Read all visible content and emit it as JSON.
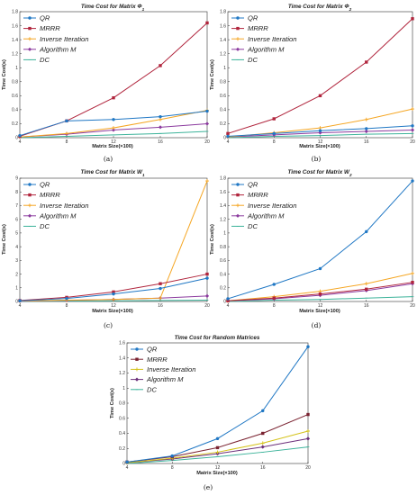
{
  "colors": {
    "QR": "#1f77c4",
    "MRRR": "#b0243c",
    "Inverse Iteration": "#f5a623",
    "Algorithm M": "#8b3a9e",
    "DC": "#3cb39a",
    "Inverse Iteration (e)": "#d4c21a",
    "MRRR (e)": "#7a2230",
    "Algorithm M (e)": "#6b2f7a"
  },
  "chart_data": [
    {
      "type": "line",
      "title_main": "Time Cost for Matrix Φ",
      "title_sub": "1",
      "xlabel": "Matrix Size(×100)",
      "ylabel": "Time Cost(s)",
      "panel_label": "(a)",
      "x": [
        4,
        8,
        12,
        16,
        20
      ],
      "xlim": [
        4,
        20
      ],
      "ylim": [
        0,
        1.8
      ],
      "xticks": [
        "4",
        "8",
        "12",
        "16",
        "20"
      ],
      "yticks": [
        "0",
        "0.2",
        "0.4",
        "0.6",
        "0.8",
        "1",
        "1.2",
        "1.4",
        "1.6",
        "1.8"
      ],
      "legend": "top-left",
      "series": [
        {
          "name": "QR",
          "values": [
            0.03,
            0.24,
            0.26,
            0.3,
            0.38
          ]
        },
        {
          "name": "MRRR",
          "values": [
            0.02,
            0.24,
            0.57,
            1.03,
            1.64
          ]
        },
        {
          "name": "Inverse Iteration",
          "values": [
            0.01,
            0.06,
            0.14,
            0.26,
            0.39
          ]
        },
        {
          "name": "Algorithm M",
          "values": [
            0.01,
            0.05,
            0.11,
            0.15,
            0.2
          ]
        },
        {
          "name": "DC",
          "values": [
            0.0,
            0.02,
            0.04,
            0.06,
            0.09
          ]
        }
      ]
    },
    {
      "type": "line",
      "title_main": "Time Cost for Matrix Φ",
      "title_sub": "2",
      "xlabel": "Matrix Size(×100)",
      "ylabel": "Time Cost(s)",
      "panel_label": "(b)",
      "x": [
        4,
        8,
        12,
        16,
        20
      ],
      "xlim": [
        4,
        20
      ],
      "ylim": [
        0,
        1.8
      ],
      "xticks": [
        "4",
        "8",
        "12",
        "16",
        "20"
      ],
      "yticks": [
        "0",
        "0.2",
        "0.4",
        "0.6",
        "0.8",
        "1",
        "1.2",
        "1.4",
        "1.6",
        "1.8"
      ],
      "legend": "top-left",
      "series": [
        {
          "name": "QR",
          "values": [
            0.02,
            0.06,
            0.1,
            0.13,
            0.17
          ]
        },
        {
          "name": "MRRR",
          "values": [
            0.06,
            0.27,
            0.6,
            1.08,
            1.7
          ]
        },
        {
          "name": "Inverse Iteration",
          "values": [
            0.01,
            0.07,
            0.14,
            0.26,
            0.41
          ]
        },
        {
          "name": "Algorithm M",
          "values": [
            0.01,
            0.04,
            0.07,
            0.09,
            0.11
          ]
        },
        {
          "name": "DC",
          "values": [
            0.0,
            0.02,
            0.03,
            0.05,
            0.06
          ]
        }
      ]
    },
    {
      "type": "line",
      "title_main": "Time Cost for Matrix W",
      "title_sub": "1",
      "xlabel": "Matrix Size(×100)",
      "ylabel": "Time Cost(s)",
      "panel_label": "(c)",
      "x": [
        4,
        8,
        12,
        16,
        20
      ],
      "xlim": [
        4,
        20
      ],
      "ylim": [
        0,
        9
      ],
      "xticks": [
        "4",
        "8",
        "12",
        "16",
        "20"
      ],
      "yticks": [
        "0",
        "1",
        "2",
        "3",
        "4",
        "5",
        "6",
        "7",
        "8",
        "9"
      ],
      "legend": "top-left",
      "series": [
        {
          "name": "QR",
          "values": [
            0.05,
            0.22,
            0.55,
            0.95,
            1.7
          ]
        },
        {
          "name": "MRRR",
          "values": [
            0.07,
            0.3,
            0.7,
            1.3,
            2.0
          ]
        },
        {
          "name": "Inverse Iteration",
          "values": [
            0.03,
            0.1,
            0.15,
            0.25,
            8.8
          ]
        },
        {
          "name": "Algorithm M",
          "values": [
            0.02,
            0.08,
            0.15,
            0.25,
            0.4
          ]
        },
        {
          "name": "DC",
          "values": [
            0.01,
            0.03,
            0.05,
            0.07,
            0.1
          ]
        }
      ]
    },
    {
      "type": "line",
      "title_main": "Time Cost for Matrix W",
      "title_sub": "2",
      "xlabel": "Matrix Size(×100)",
      "ylabel": "Time Cost(s)",
      "panel_label": "(d)",
      "x": [
        4,
        8,
        12,
        16,
        20
      ],
      "xlim": [
        4,
        20
      ],
      "ylim": [
        0,
        1.8
      ],
      "xticks": [
        "4",
        "8",
        "12",
        "16",
        "20"
      ],
      "yticks": [
        "0",
        "0.2",
        "0.4",
        "0.6",
        "0.8",
        "1",
        "1.2",
        "1.4",
        "1.6",
        "1.8"
      ],
      "legend": "top-left",
      "series": [
        {
          "name": "QR",
          "values": [
            0.04,
            0.25,
            0.48,
            1.02,
            1.76
          ]
        },
        {
          "name": "MRRR",
          "values": [
            0.01,
            0.05,
            0.11,
            0.18,
            0.28
          ]
        },
        {
          "name": "Inverse Iteration",
          "values": [
            0.01,
            0.07,
            0.15,
            0.26,
            0.41
          ]
        },
        {
          "name": "Algorithm M",
          "values": [
            0.01,
            0.04,
            0.09,
            0.16,
            0.26
          ]
        },
        {
          "name": "DC",
          "values": [
            0.0,
            0.02,
            0.03,
            0.05,
            0.07
          ]
        }
      ]
    },
    {
      "type": "line",
      "title_main": "Time Cost for Random Matrices",
      "title_sub": "",
      "xlabel": "Matrix Size(×100)",
      "ylabel": "Time Cost(s)",
      "panel_label": "(e)",
      "x": [
        4,
        8,
        12,
        16,
        20
      ],
      "xlim": [
        4,
        20
      ],
      "ylim": [
        0,
        1.6
      ],
      "xticks": [
        "4",
        "8",
        "12",
        "16",
        "20"
      ],
      "yticks": [
        "0",
        "0.2",
        "0.4",
        "0.6",
        "0.8",
        "1",
        "1.2",
        "1.4",
        "1.6"
      ],
      "legend": "top-left",
      "series": [
        {
          "name": "QR",
          "values": [
            0.02,
            0.1,
            0.33,
            0.7,
            1.55
          ]
        },
        {
          "name": "MRRR",
          "values": [
            0.02,
            0.09,
            0.21,
            0.4,
            0.65
          ]
        },
        {
          "name": "Inverse Iteration",
          "values": [
            0.01,
            0.07,
            0.15,
            0.27,
            0.43
          ]
        },
        {
          "name": "Algorithm M",
          "values": [
            0.01,
            0.06,
            0.13,
            0.22,
            0.33
          ]
        },
        {
          "name": "DC",
          "values": [
            0.0,
            0.04,
            0.09,
            0.15,
            0.22
          ]
        }
      ]
    }
  ]
}
